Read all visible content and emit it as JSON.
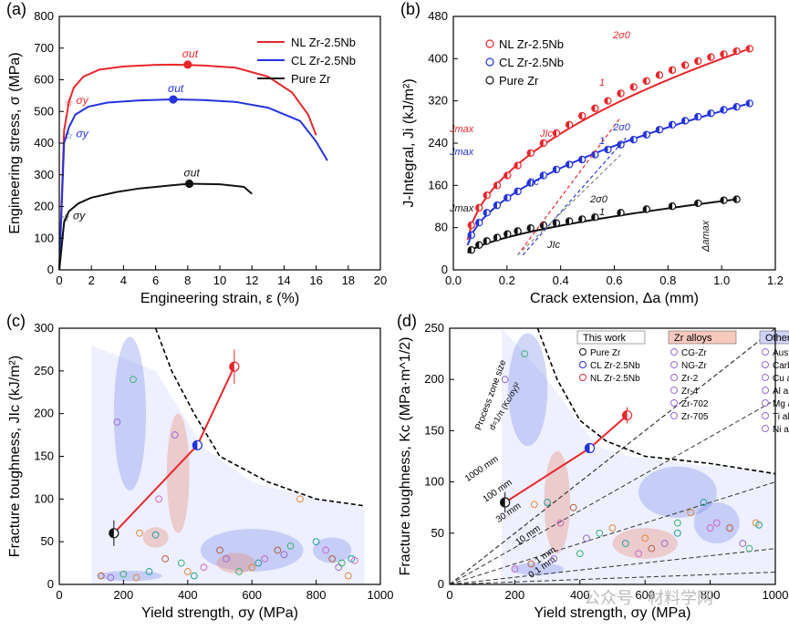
{
  "watermark": "公众号 · 材料学网",
  "colors": {
    "nl": "#e8262b",
    "cl": "#2233dd",
    "pure": "#111111",
    "zr": "#e8876f",
    "others": "#7a8be8"
  },
  "chart_data": [
    {
      "panel": "(a)",
      "type": "line",
      "xlabel": "Engineering strain, ε (%)",
      "ylabel": "Engineering stress, σ (MPa)",
      "xlim": [
        0,
        20
      ],
      "ylim": [
        0,
        800
      ],
      "xticks": [
        "0",
        "2",
        "4",
        "6",
        "8",
        "10",
        "12",
        "14",
        "16",
        "18",
        "20"
      ],
      "yticks": [
        "0",
        "100",
        "200",
        "300",
        "400",
        "500",
        "600",
        "700",
        "800"
      ],
      "legend_position": "top-right",
      "series": [
        {
          "name": "NL Zr-2.5Nb",
          "color": "#e8262b",
          "x": [
            0,
            0.3,
            0.6,
            0.9,
            1.5,
            2.5,
            4,
            6,
            7.2,
            9,
            11,
            13,
            14.5,
            15.5,
            16
          ],
          "y": [
            0,
            440,
            530,
            575,
            610,
            632,
            642,
            647,
            648,
            645,
            638,
            610,
            560,
            490,
            425
          ]
        },
        {
          "name": "CL Zr-2.5Nb",
          "color": "#2233dd",
          "x": [
            0,
            0.3,
            0.6,
            1,
            1.8,
            3,
            5,
            7.1,
            9,
            11,
            13,
            15,
            16,
            16.7
          ],
          "y": [
            0,
            400,
            450,
            490,
            515,
            528,
            535,
            538,
            536,
            530,
            512,
            470,
            405,
            345
          ]
        },
        {
          "name": "Pure Zr",
          "color": "#111111",
          "x": [
            0,
            0.3,
            0.6,
            1.2,
            2,
            3.5,
            5,
            7,
            8.1,
            10,
            11.5,
            12
          ],
          "y": [
            0,
            150,
            185,
            210,
            228,
            245,
            257,
            267,
            272,
            270,
            262,
            240
          ]
        }
      ],
      "markers": [
        {
          "label": "σut",
          "x": 8.0,
          "y": 648,
          "color": "#e8262b"
        },
        {
          "label": "σut",
          "x": 7.1,
          "y": 538,
          "color": "#2233dd"
        },
        {
          "label": "σut",
          "x": 8.1,
          "y": 272,
          "color": "#111111"
        },
        {
          "label": "σy",
          "x": 0.6,
          "y": 530,
          "color": "#e8262b"
        },
        {
          "label": "σy",
          "x": 0.6,
          "y": 425,
          "color": "#2233dd"
        },
        {
          "label": "σy",
          "x": 0.4,
          "y": 165,
          "color": "#111111"
        }
      ]
    },
    {
      "panel": "(b)",
      "type": "scatter",
      "xlabel": "Crack extension, Δa (mm)",
      "ylabel": "J-Integral, Ji (kJ/m²)",
      "xlim": [
        -0.05,
        1.2
      ],
      "ylim": [
        -30,
        480
      ],
      "xticks": [
        "0.0",
        "0.2",
        "0.4",
        "0.6",
        "0.8",
        "1.0",
        "1.2"
      ],
      "yticks": [
        "0",
        "80",
        "160",
        "240",
        "320",
        "400",
        "480"
      ],
      "legend_position": "top-left",
      "series": [
        {
          "name": "NL Zr-2.5Nb",
          "color": "#e8262b",
          "x": [
            0.02,
            0.05,
            0.08,
            0.12,
            0.16,
            0.2,
            0.25,
            0.3,
            0.35,
            0.4,
            0.45,
            0.5,
            0.55,
            0.6,
            0.65,
            0.7,
            0.75,
            0.8,
            0.85,
            0.9,
            0.95,
            1.0,
            1.05,
            1.1
          ],
          "y": [
            60,
            95,
            120,
            140,
            160,
            180,
            205,
            225,
            245,
            262,
            280,
            295,
            310,
            325,
            338,
            350,
            362,
            372,
            382,
            390,
            398,
            404,
            410,
            415
          ]
        },
        {
          "name": "CL Zr-2.5Nb",
          "color": "#2233dd",
          "x": [
            0.02,
            0.05,
            0.08,
            0.12,
            0.16,
            0.2,
            0.25,
            0.3,
            0.35,
            0.4,
            0.45,
            0.5,
            0.55,
            0.6,
            0.65,
            0.7,
            0.75,
            0.8,
            0.85,
            0.9,
            0.95,
            1.0,
            1.05,
            1.1
          ],
          "y": [
            40,
            65,
            85,
            100,
            115,
            128,
            145,
            160,
            172,
            182,
            192,
            202,
            212,
            222,
            232,
            242,
            252,
            262,
            270,
            278,
            285,
            292,
            298,
            305
          ]
        },
        {
          "name": "Pure Zr",
          "color": "#111111",
          "x": [
            0.02,
            0.05,
            0.08,
            0.12,
            0.16,
            0.2,
            0.25,
            0.3,
            0.35,
            0.4,
            0.45,
            0.5,
            0.6,
            0.7,
            0.8,
            0.9,
            1.0,
            1.05
          ],
          "y": [
            10,
            20,
            28,
            35,
            42,
            48,
            54,
            60,
            64,
            68,
            72,
            76,
            85,
            92,
            98,
            104,
            110,
            112
          ]
        }
      ],
      "annotations": [
        "Jmax",
        "Jmax",
        "Jmax",
        "JIc",
        "JIc",
        "JIc",
        "2σ0",
        "2σ0",
        "2σ0",
        "1",
        "1",
        "1",
        "Δamax"
      ]
    },
    {
      "panel": "(c)",
      "type": "scatter",
      "xlabel": "Yield strength, σy (MPa)",
      "ylabel": "Fracture toughness, JIc (kJ/m²)",
      "xlim": [
        0,
        1000
      ],
      "ylim": [
        0,
        300
      ],
      "xticks": [
        "0",
        "200",
        "400",
        "600",
        "800",
        "1000"
      ],
      "yticks": [
        "0",
        "50",
        "100",
        "150",
        "200",
        "250",
        "300"
      ],
      "series": [
        {
          "name": "Pure Zr",
          "color": "#111111",
          "x": [
            170
          ],
          "y": [
            60
          ],
          "err": [
            15
          ]
        },
        {
          "name": "CL Zr-2.5Nb",
          "color": "#2233dd",
          "x": [
            430
          ],
          "y": [
            163
          ],
          "err": [
            0
          ]
        },
        {
          "name": "NL Zr-2.5Nb",
          "color": "#e8262b",
          "x": [
            545
          ],
          "y": [
            255
          ],
          "err": [
            20
          ]
        }
      ],
      "scatter_others": {
        "x": [
          180,
          230,
          250,
          300,
          310,
          330,
          360,
          380,
          400,
          420,
          450,
          500,
          520,
          560,
          600,
          620,
          640,
          680,
          700,
          720,
          750,
          800,
          830,
          850,
          870,
          880,
          900,
          910,
          920,
          130,
          160,
          200,
          240,
          280
        ],
        "y": [
          190,
          240,
          60,
          58,
          100,
          30,
          175,
          25,
          15,
          10,
          20,
          40,
          30,
          15,
          20,
          25,
          30,
          40,
          35,
          45,
          100,
          50,
          40,
          30,
          20,
          25,
          10,
          30,
          28,
          10,
          8,
          12,
          8,
          15
        ]
      }
    },
    {
      "panel": "(d)",
      "type": "scatter",
      "xlabel": "Yield strength, σy (MPa)",
      "ylabel": "Fracture toughness, Kc (MPa·m^1/2)",
      "xlim": [
        0,
        1000
      ],
      "ylim": [
        0,
        250
      ],
      "xticks": [
        "0",
        "200",
        "400",
        "600",
        "800",
        "1000"
      ],
      "yticks": [
        "0",
        "50",
        "100",
        "150",
        "200",
        "250"
      ],
      "legend_groups": [
        {
          "title": "This work",
          "items": [
            "Pure Zr",
            "CL Zr-2.5Nb",
            "NL Zr-2.5Nb"
          ]
        },
        {
          "title": "Zr alloys",
          "items": [
            "CG-Zr",
            "NG-Zr",
            "Zr-2",
            "Zr-4",
            "Zr-702",
            "Zr-705"
          ]
        },
        {
          "title": "Others",
          "items": [
            "Austenitic steel",
            "Carbon steel",
            "Cu alloys",
            "Al alloys",
            "Mg alloys",
            "Ti alloys",
            "Ni alloys"
          ]
        }
      ],
      "series": [
        {
          "name": "Pure Zr",
          "color": "#111111",
          "x": [
            170
          ],
          "y": [
            80
          ],
          "err": [
            10
          ]
        },
        {
          "name": "CL Zr-2.5Nb",
          "color": "#2233dd",
          "x": [
            430
          ],
          "y": [
            133
          ],
          "err": [
            0
          ]
        },
        {
          "name": "NL Zr-2.5Nb",
          "color": "#e8262b",
          "x": [
            545
          ],
          "y": [
            165
          ],
          "err": [
            8
          ]
        }
      ],
      "process_zone_lines": [
        "1000 mm",
        "100 mm",
        "30 mm",
        "10 mm",
        "1 mm",
        "0.1 mm"
      ],
      "process_zone_label": "Process zone size",
      "process_zone_formula": "d=1/π (Kc/σy)²",
      "scatter_others": {
        "x": [
          170,
          230,
          260,
          300,
          340,
          380,
          420,
          460,
          500,
          540,
          580,
          620,
          660,
          700,
          740,
          780,
          820,
          860,
          900,
          920,
          940,
          950,
          200,
          250,
          320,
          400,
          600,
          700,
          800
        ],
        "y": [
          200,
          225,
          78,
          80,
          60,
          75,
          45,
          50,
          55,
          40,
          30,
          35,
          40,
          60,
          70,
          80,
          60,
          55,
          40,
          35,
          60,
          58,
          15,
          20,
          25,
          30,
          45,
          50,
          55
        ]
      }
    }
  ]
}
